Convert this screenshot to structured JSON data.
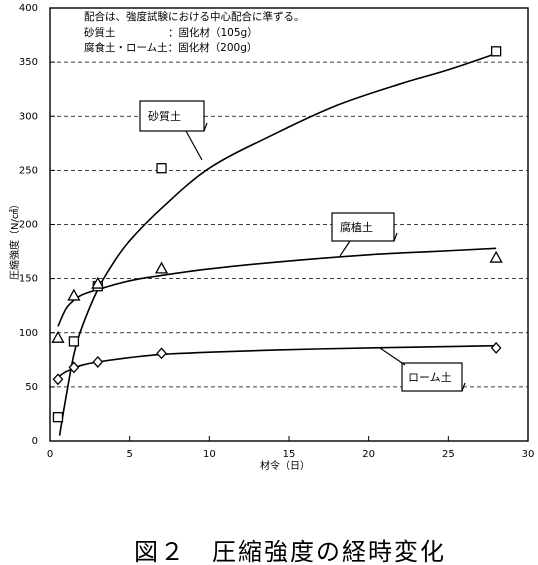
{
  "chart_data": {
    "type": "scatter",
    "title": "",
    "caption": "図２　圧縮強度の経時変化",
    "xlabel": "材令（日）",
    "ylabel": "圧縮強度（N/㎠）",
    "xlim": [
      0,
      30
    ],
    "ylim": [
      0,
      400
    ],
    "x_ticks": [
      0,
      5,
      10,
      15,
      20,
      25,
      30
    ],
    "y_ticks": [
      0,
      50,
      100,
      150,
      200,
      250,
      300,
      350,
      400
    ],
    "grid": "horizontal dashed",
    "notes": [
      "配合は、強度試験における中心配合に準ずる。",
      "砂質土　　　　　：固化材（105g）",
      "腐食土・ローム土：固化材（200g）"
    ],
    "series": [
      {
        "name": "砂質土",
        "marker": "square",
        "points": [
          [
            0.5,
            22
          ],
          [
            1.5,
            92
          ],
          [
            3,
            143
          ],
          [
            7,
            252
          ],
          [
            28,
            360
          ]
        ],
        "curve": [
          [
            0.6,
            5
          ],
          [
            1,
            40
          ],
          [
            1.5,
            80
          ],
          [
            2,
            105
          ],
          [
            3,
            140
          ],
          [
            4,
            165
          ],
          [
            5,
            185
          ],
          [
            7,
            215
          ],
          [
            10,
            252
          ],
          [
            14,
            283
          ],
          [
            18,
            310
          ],
          [
            22,
            330
          ],
          [
            25,
            343
          ],
          [
            28,
            358
          ]
        ]
      },
      {
        "name": "腐植土",
        "marker": "triangle",
        "points": [
          [
            0.5,
            95
          ],
          [
            1.5,
            134
          ],
          [
            3,
            145
          ],
          [
            7,
            159
          ],
          [
            28,
            169
          ]
        ],
        "curve": [
          [
            0.5,
            106
          ],
          [
            1,
            122
          ],
          [
            1.5,
            130
          ],
          [
            2,
            135
          ],
          [
            3,
            140
          ],
          [
            5,
            148
          ],
          [
            7,
            153
          ],
          [
            10,
            159
          ],
          [
            14,
            165
          ],
          [
            20,
            172
          ],
          [
            24,
            175
          ],
          [
            28,
            178
          ]
        ]
      },
      {
        "name": "ローム土",
        "marker": "diamond",
        "points": [
          [
            0.5,
            57
          ],
          [
            1.5,
            68
          ],
          [
            3,
            73
          ],
          [
            7,
            81
          ],
          [
            28,
            86
          ]
        ],
        "curve": [
          [
            0.5,
            59
          ],
          [
            1,
            64
          ],
          [
            1.5,
            67
          ],
          [
            2,
            70
          ],
          [
            3,
            73
          ],
          [
            5,
            77
          ],
          [
            7,
            80
          ],
          [
            10,
            82
          ],
          [
            14,
            84
          ],
          [
            20,
            86
          ],
          [
            24,
            87
          ],
          [
            28,
            88
          ]
        ]
      }
    ]
  }
}
